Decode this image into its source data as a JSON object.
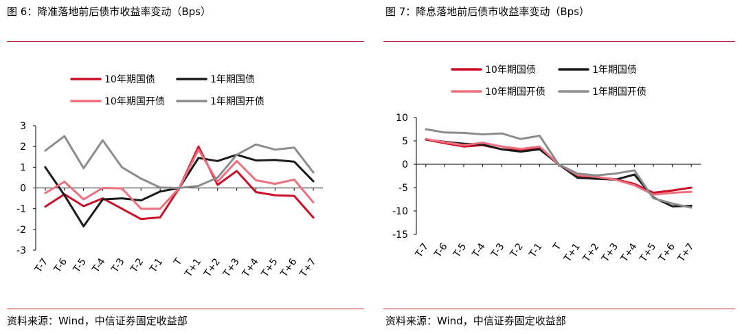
{
  "colors": {
    "rule": "#c0202a",
    "s10y": "#cc0f27",
    "s1y": "#1a1a1a",
    "s10ydev": "#ef6f7e",
    "s1ydev": "#8c8c8c"
  },
  "chart_data": [
    {
      "type": "line",
      "title": "图 6：降准落地前后债市收益率变动（Bps）",
      "source": "资料来源：Wind，中信证券固定收益部",
      "categories": [
        "T-7",
        "T-6",
        "T-5",
        "T-4",
        "T-3",
        "T-2",
        "T-1",
        "T",
        "T+1",
        "T+2",
        "T+3",
        "T+4",
        "T+5",
        "T+6",
        "T+7"
      ],
      "ylim": [
        -3,
        3
      ],
      "yticks": [
        "3",
        "2",
        "1",
        "0",
        "-1",
        "-2",
        "-3"
      ],
      "ytick_values": [
        3,
        2,
        1,
        0,
        -1,
        -2,
        -3
      ],
      "legend_position": "top",
      "series": [
        {
          "name": "10年期国债",
          "color_key": "s10y",
          "values": [
            -0.9,
            -0.3,
            -0.88,
            -0.5,
            -1.0,
            -1.5,
            -1.42,
            0.0,
            2.0,
            0.15,
            0.82,
            -0.2,
            -0.35,
            -0.38,
            -1.43
          ]
        },
        {
          "name": "1年期国债",
          "color_key": "s1y",
          "values": [
            1.0,
            -0.35,
            -1.85,
            -0.55,
            -0.5,
            -0.6,
            -0.17,
            0.0,
            1.45,
            1.3,
            1.6,
            1.33,
            1.35,
            1.27,
            0.32
          ]
        },
        {
          "name": "10年期国开债",
          "color_key": "s10ydev",
          "values": [
            -0.25,
            0.3,
            -0.55,
            0.0,
            -0.02,
            -1.0,
            -1.0,
            0.0,
            1.85,
            0.3,
            1.3,
            0.37,
            0.2,
            0.4,
            -0.7
          ]
        },
        {
          "name": "1年期国开债",
          "color_key": "s1ydev",
          "values": [
            1.8,
            2.5,
            0.95,
            2.3,
            1.0,
            0.45,
            0.02,
            0.0,
            0.1,
            0.5,
            1.6,
            2.1,
            1.85,
            1.95,
            0.75
          ]
        }
      ]
    },
    {
      "type": "line",
      "title": "图 7：降息落地前后债市收益率变动（Bps）",
      "source": "资料来源：Wind，中信证券固定收益部",
      "categories": [
        "T-7",
        "T-6",
        "T-5",
        "T-4",
        "T-3",
        "T-2",
        "T-1",
        "T",
        "T+1",
        "T+2",
        "T+3",
        "T+4",
        "T+5",
        "T+6",
        "T+7"
      ],
      "ylim": [
        -15,
        10
      ],
      "yticks": [
        "10",
        "5",
        "0",
        "-5",
        "-10",
        "-15"
      ],
      "ytick_values": [
        10,
        5,
        0,
        -5,
        -10,
        -15
      ],
      "legend_position": "top",
      "series": [
        {
          "name": "10年期国债",
          "color_key": "s10y",
          "values": [
            5.3,
            4.5,
            3.8,
            4.1,
            3.2,
            3.0,
            3.5,
            0.0,
            -2.5,
            -2.8,
            -3.2,
            -4.2,
            -6.1,
            -5.6,
            -5.0
          ]
        },
        {
          "name": "1年期国债",
          "color_key": "s1y",
          "values": [
            5.3,
            4.8,
            4.4,
            4.2,
            3.2,
            2.7,
            3.2,
            0.0,
            -2.9,
            -3.1,
            -3.3,
            -2.2,
            -7.1,
            -9.0,
            -8.9
          ]
        },
        {
          "name": "10年期国开债",
          "color_key": "s10ydev",
          "values": [
            5.4,
            4.7,
            4.1,
            4.6,
            3.8,
            3.3,
            3.8,
            0.0,
            -2.3,
            -2.7,
            -3.3,
            -4.5,
            -6.5,
            -6.1,
            -5.9
          ]
        },
        {
          "name": "1年期国开债",
          "color_key": "s1ydev",
          "values": [
            7.5,
            6.8,
            6.7,
            6.4,
            6.6,
            5.4,
            6.1,
            0.0,
            -2.0,
            -2.4,
            -2.0,
            -1.3,
            -7.3,
            -8.4,
            -9.3
          ]
        }
      ]
    }
  ]
}
